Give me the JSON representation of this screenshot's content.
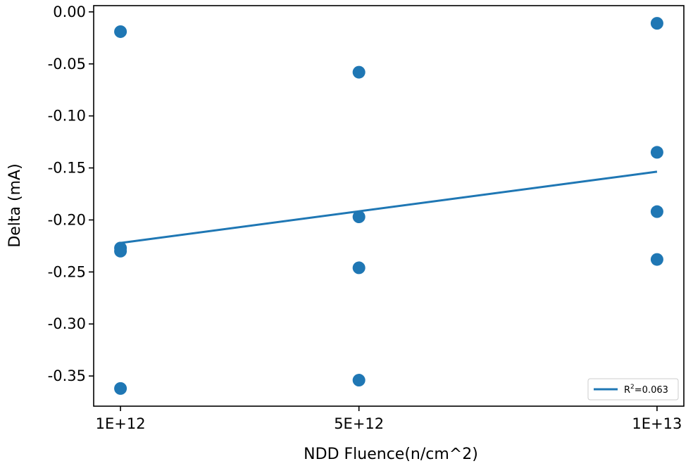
{
  "chart_data": {
    "type": "scatter",
    "xlabel": "NDD Fluence(n/cm^2)",
    "ylabel": "Delta (mA)",
    "x_ticks": [
      {
        "value": 1000000000000.0,
        "label": "1E+12"
      },
      {
        "value": 5000000000000.0,
        "label": "5E+12"
      },
      {
        "value": 10000000000000.0,
        "label": "1E+13"
      }
    ],
    "y_ticks": [
      {
        "value": 0.0,
        "label": "0.00"
      },
      {
        "value": -0.05,
        "label": "-0.05"
      },
      {
        "value": -0.1,
        "label": "-0.10"
      },
      {
        "value": -0.15,
        "label": "-0.15"
      },
      {
        "value": -0.2,
        "label": "-0.20"
      },
      {
        "value": -0.25,
        "label": "-0.25"
      },
      {
        "value": -0.3,
        "label": "-0.30"
      },
      {
        "value": -0.35,
        "label": "-0.35"
      }
    ],
    "xlim": [
      550000000000.0,
      10450000000000.0
    ],
    "ylim": [
      -0.379,
      0.006
    ],
    "points": [
      {
        "x": 1000000000000.0,
        "y": -0.019
      },
      {
        "x": 1000000000000.0,
        "y": -0.227
      },
      {
        "x": 1000000000000.0,
        "y": -0.23
      },
      {
        "x": 1000000000000.0,
        "y": -0.362
      },
      {
        "x": 5000000000000.0,
        "y": -0.058
      },
      {
        "x": 5000000000000.0,
        "y": -0.197
      },
      {
        "x": 5000000000000.0,
        "y": -0.246
      },
      {
        "x": 5000000000000.0,
        "y": -0.354
      },
      {
        "x": 10000000000000.0,
        "y": -0.011
      },
      {
        "x": 10000000000000.0,
        "y": -0.135
      },
      {
        "x": 10000000000000.0,
        "y": -0.192
      },
      {
        "x": 10000000000000.0,
        "y": -0.238
      }
    ],
    "trendline": {
      "x": [
        1000000000000.0,
        10000000000000.0
      ],
      "y": [
        -0.2221,
        -0.1536
      ]
    },
    "legend": {
      "position": "lower-right",
      "label_prefix": "R",
      "label_sup": "2",
      "label_suffix": "=0.063"
    },
    "color": "#1f77b4",
    "grid": false
  }
}
